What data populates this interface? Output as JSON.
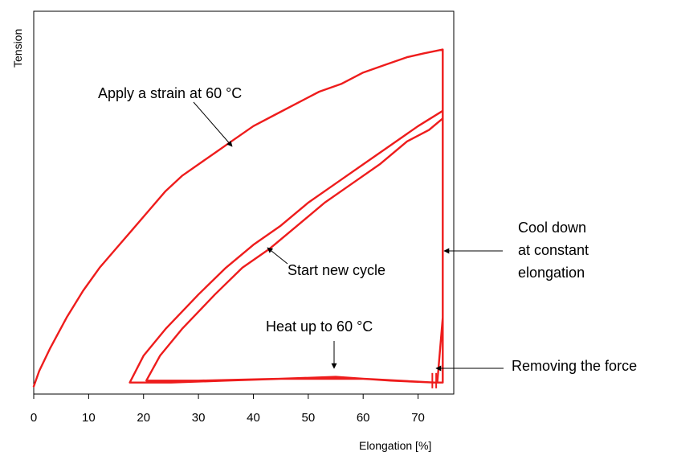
{
  "chart_data": {
    "type": "line",
    "title": "",
    "xlabel": "Elongation [%]",
    "ylabel": "Tension",
    "xlim": [
      0,
      76.5
    ],
    "ylim": [
      0,
      1
    ],
    "x_ticks": [
      "0",
      "10",
      "20",
      "30",
      "40",
      "50",
      "60",
      "70"
    ],
    "y_ticks": [],
    "grid": false,
    "legend": "none",
    "colors": {
      "curve": "#ee1c1c",
      "axis": "#000000",
      "arrow": "#000000"
    },
    "series": [
      {
        "points": [
          [
            0,
            0.02
          ],
          [
            1,
            0.06
          ],
          [
            3,
            0.12
          ],
          [
            6,
            0.2
          ],
          [
            9,
            0.27
          ],
          [
            12,
            0.33
          ],
          [
            15,
            0.38
          ],
          [
            18,
            0.43
          ],
          [
            21,
            0.48
          ],
          [
            24,
            0.53
          ],
          [
            27,
            0.57
          ],
          [
            30,
            0.6
          ],
          [
            33,
            0.63
          ],
          [
            36,
            0.66
          ],
          [
            40,
            0.7
          ],
          [
            44,
            0.73
          ],
          [
            48,
            0.76
          ],
          [
            52,
            0.79
          ],
          [
            56,
            0.81
          ],
          [
            60,
            0.84
          ],
          [
            64,
            0.86
          ],
          [
            68,
            0.88
          ],
          [
            71,
            0.89
          ],
          [
            74.5,
            0.9
          ],
          [
            74.5,
            0.36
          ],
          [
            74.5,
            0.03
          ],
          [
            73,
            0.03
          ],
          [
            65,
            0.035
          ],
          [
            55,
            0.045
          ],
          [
            45,
            0.04
          ],
          [
            35,
            0.035
          ],
          [
            25,
            0.03
          ],
          [
            17.5,
            0.03
          ],
          [
            20,
            0.1
          ],
          [
            24,
            0.17
          ],
          [
            30,
            0.26
          ],
          [
            35,
            0.33
          ],
          [
            40,
            0.39
          ],
          [
            45,
            0.44
          ],
          [
            50,
            0.5
          ],
          [
            55,
            0.55
          ],
          [
            60,
            0.6
          ],
          [
            65,
            0.65
          ],
          [
            70,
            0.7
          ],
          [
            74.5,
            0.74
          ],
          [
            74.5,
            0.03
          ],
          [
            73,
            0.03
          ],
          [
            60,
            0.04
          ],
          [
            45,
            0.04
          ],
          [
            30,
            0.035
          ],
          [
            20.5,
            0.035
          ],
          [
            23,
            0.1
          ],
          [
            27,
            0.17
          ],
          [
            33,
            0.26
          ],
          [
            38,
            0.33
          ],
          [
            43,
            0.38
          ],
          [
            48,
            0.44
          ],
          [
            53,
            0.5
          ],
          [
            58,
            0.55
          ],
          [
            63,
            0.6
          ],
          [
            68,
            0.66
          ],
          [
            72,
            0.69
          ],
          [
            74.5,
            0.72
          ],
          [
            74.5,
            0.2
          ],
          [
            73.5,
            0.03
          ],
          [
            72.5,
            0.03
          ]
        ]
      }
    ],
    "annotations": [
      {
        "text": "Apply a strain at 60 °C",
        "target": [
          36,
          0.66
        ]
      },
      {
        "text": "Start new cycle",
        "target": [
          42,
          0.39
        ]
      },
      {
        "text": "Heat up to 60 °C",
        "target": [
          55,
          0.045
        ]
      },
      {
        "text": "Cool down",
        "target": [
          74.5,
          0.36
        ]
      },
      {
        "text": "at constant",
        "target": null
      },
      {
        "text": "elongation",
        "target": null
      },
      {
        "text": "Removing the force",
        "target": [
          73.5,
          0.03
        ]
      }
    ]
  }
}
